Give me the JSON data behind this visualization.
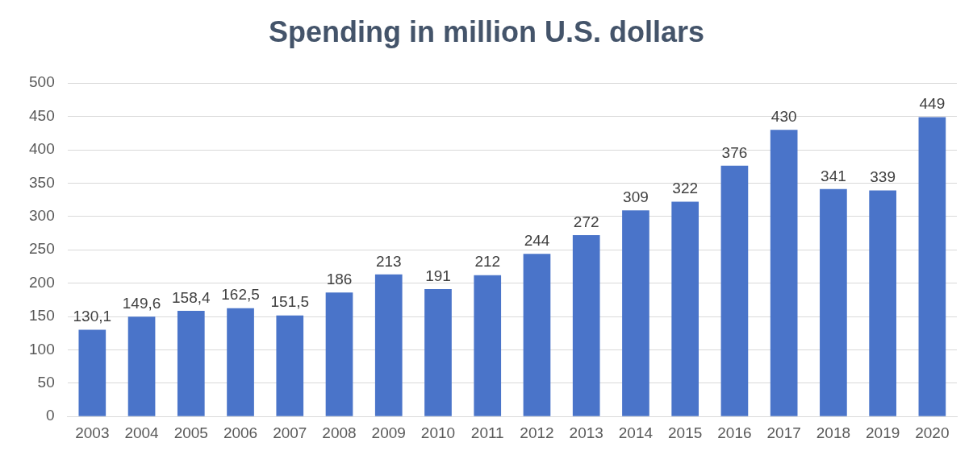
{
  "chart_data": {
    "type": "bar",
    "title": "Spending in million U.S. dollars",
    "categories": [
      "2003",
      "2004",
      "2005",
      "2006",
      "2007",
      "2008",
      "2009",
      "2010",
      "2011",
      "2012",
      "2013",
      "2014",
      "2015",
      "2016",
      "2017",
      "2018",
      "2019",
      "2020"
    ],
    "values": [
      130.1,
      149.6,
      158.4,
      162.5,
      151.5,
      186,
      213,
      191,
      212,
      244,
      272,
      309,
      322,
      376,
      430,
      341,
      339,
      449
    ],
    "value_labels": [
      "130,1",
      "149,6",
      "158,4",
      "162,5",
      "151,5",
      "186",
      "213",
      "191",
      "212",
      "244",
      "272",
      "309",
      "322",
      "376",
      "430",
      "341",
      "339",
      "449"
    ],
    "color": "#4a74c9",
    "ylim": [
      0,
      500
    ],
    "yticks": [
      0,
      50,
      100,
      150,
      200,
      250,
      300,
      350,
      400,
      450,
      500
    ],
    "grid": "y",
    "legend": false
  }
}
